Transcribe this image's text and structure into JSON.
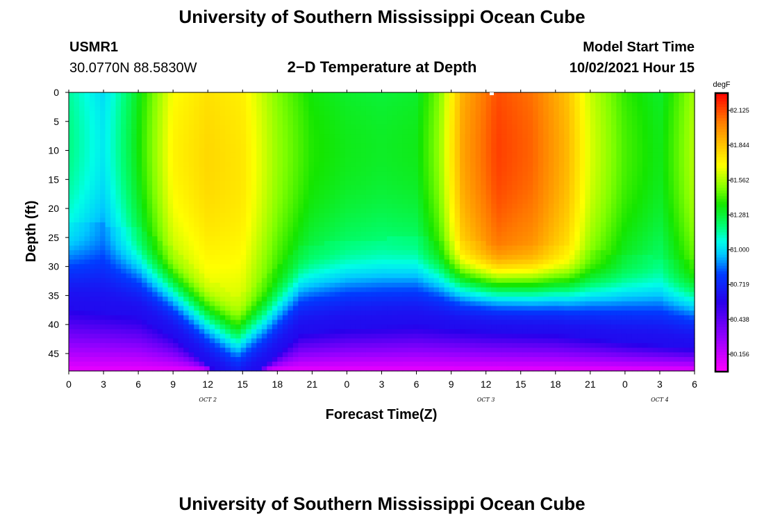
{
  "page": {
    "title_top": "University of Southern Mississippi Ocean Cube",
    "title_bottom": "University of Southern Mississippi Ocean Cube",
    "station_id": "USMR1",
    "coordinates": "30.0770N  88.5830W",
    "plot_title": "2−D Temperature at Depth",
    "model_start_label": "Model Start Time",
    "model_start_value": "10/02/2021 Hour 15"
  },
  "chart_data": {
    "type": "heatmap",
    "title": "2−D Temperature at Depth",
    "xlabel": "Forecast Time(Z)",
    "ylabel": "Depth (ft)",
    "x_hours": [
      0,
      3,
      6,
      9,
      12,
      15,
      18,
      21,
      24,
      27,
      30,
      33,
      36,
      39,
      42,
      45,
      48,
      51,
      54
    ],
    "x_tick_labels": [
      "0",
      "3",
      "6",
      "9",
      "12",
      "15",
      "18",
      "21",
      "0",
      "3",
      "6",
      "9",
      "12",
      "15",
      "18",
      "21",
      "0",
      "3",
      "6"
    ],
    "xlim": [
      0,
      54
    ],
    "date_labels": [
      {
        "text": "OCT 2",
        "hour": 12
      },
      {
        "text": "OCT 3",
        "hour": 36
      },
      {
        "text": "OCT 4",
        "hour": 51
      }
    ],
    "y_tick_values": [
      0,
      5,
      10,
      15,
      20,
      25,
      30,
      35,
      40,
      45
    ],
    "ylim": [
      0,
      48
    ],
    "colorbar": {
      "unit": "degF",
      "min": 80.016,
      "max": 82.265,
      "tick_values": [
        82.125,
        81.844,
        81.562,
        81.281,
        81.0,
        80.719,
        80.438,
        80.156
      ],
      "tick_labels": [
        "82.125",
        "81.844",
        "81.562",
        "81.281",
        "81.000",
        "80.719",
        "80.438",
        "80.156"
      ]
    },
    "thermocline_depth_ft": [
      {
        "hour": 0,
        "depth": 28.0
      },
      {
        "hour": 6,
        "depth": 29.5
      },
      {
        "hour": 9,
        "depth": 33.0
      },
      {
        "hour": 12,
        "depth": 38.0
      },
      {
        "hour": 14.5,
        "depth": 41.5
      },
      {
        "hour": 17,
        "depth": 38.0
      },
      {
        "hour": 20,
        "depth": 32.5
      },
      {
        "hour": 24,
        "depth": 31.5
      },
      {
        "hour": 30,
        "depth": 31.0
      },
      {
        "hour": 36,
        "depth": 32.0
      },
      {
        "hour": 42,
        "depth": 32.5
      },
      {
        "hour": 48,
        "depth": 34.0
      },
      {
        "hour": 54,
        "depth": 35.0
      }
    ],
    "surface_layer_degF": [
      {
        "hour": 0,
        "value": 81.15
      },
      {
        "hour": 3,
        "value": 81.0
      },
      {
        "hour": 5,
        "value": 81.2
      },
      {
        "hour": 7,
        "value": 81.45
      },
      {
        "hour": 9,
        "value": 81.68
      },
      {
        "hour": 12,
        "value": 81.76
      },
      {
        "hour": 15,
        "value": 81.72
      },
      {
        "hour": 18,
        "value": 81.5
      },
      {
        "hour": 21,
        "value": 81.35
      },
      {
        "hour": 24,
        "value": 81.3
      },
      {
        "hour": 27,
        "value": 81.28
      },
      {
        "hour": 30,
        "value": 81.3
      },
      {
        "hour": 32,
        "value": 81.5
      },
      {
        "hour": 34,
        "value": 81.9
      },
      {
        "hour": 37,
        "value": 82.12
      },
      {
        "hour": 40,
        "value": 82.05
      },
      {
        "hour": 43,
        "value": 81.85
      },
      {
        "hour": 45,
        "value": 81.6
      },
      {
        "hour": 48,
        "value": 81.4
      },
      {
        "hour": 51,
        "value": 81.3
      },
      {
        "hour": 54,
        "value": 81.55
      }
    ]
  }
}
